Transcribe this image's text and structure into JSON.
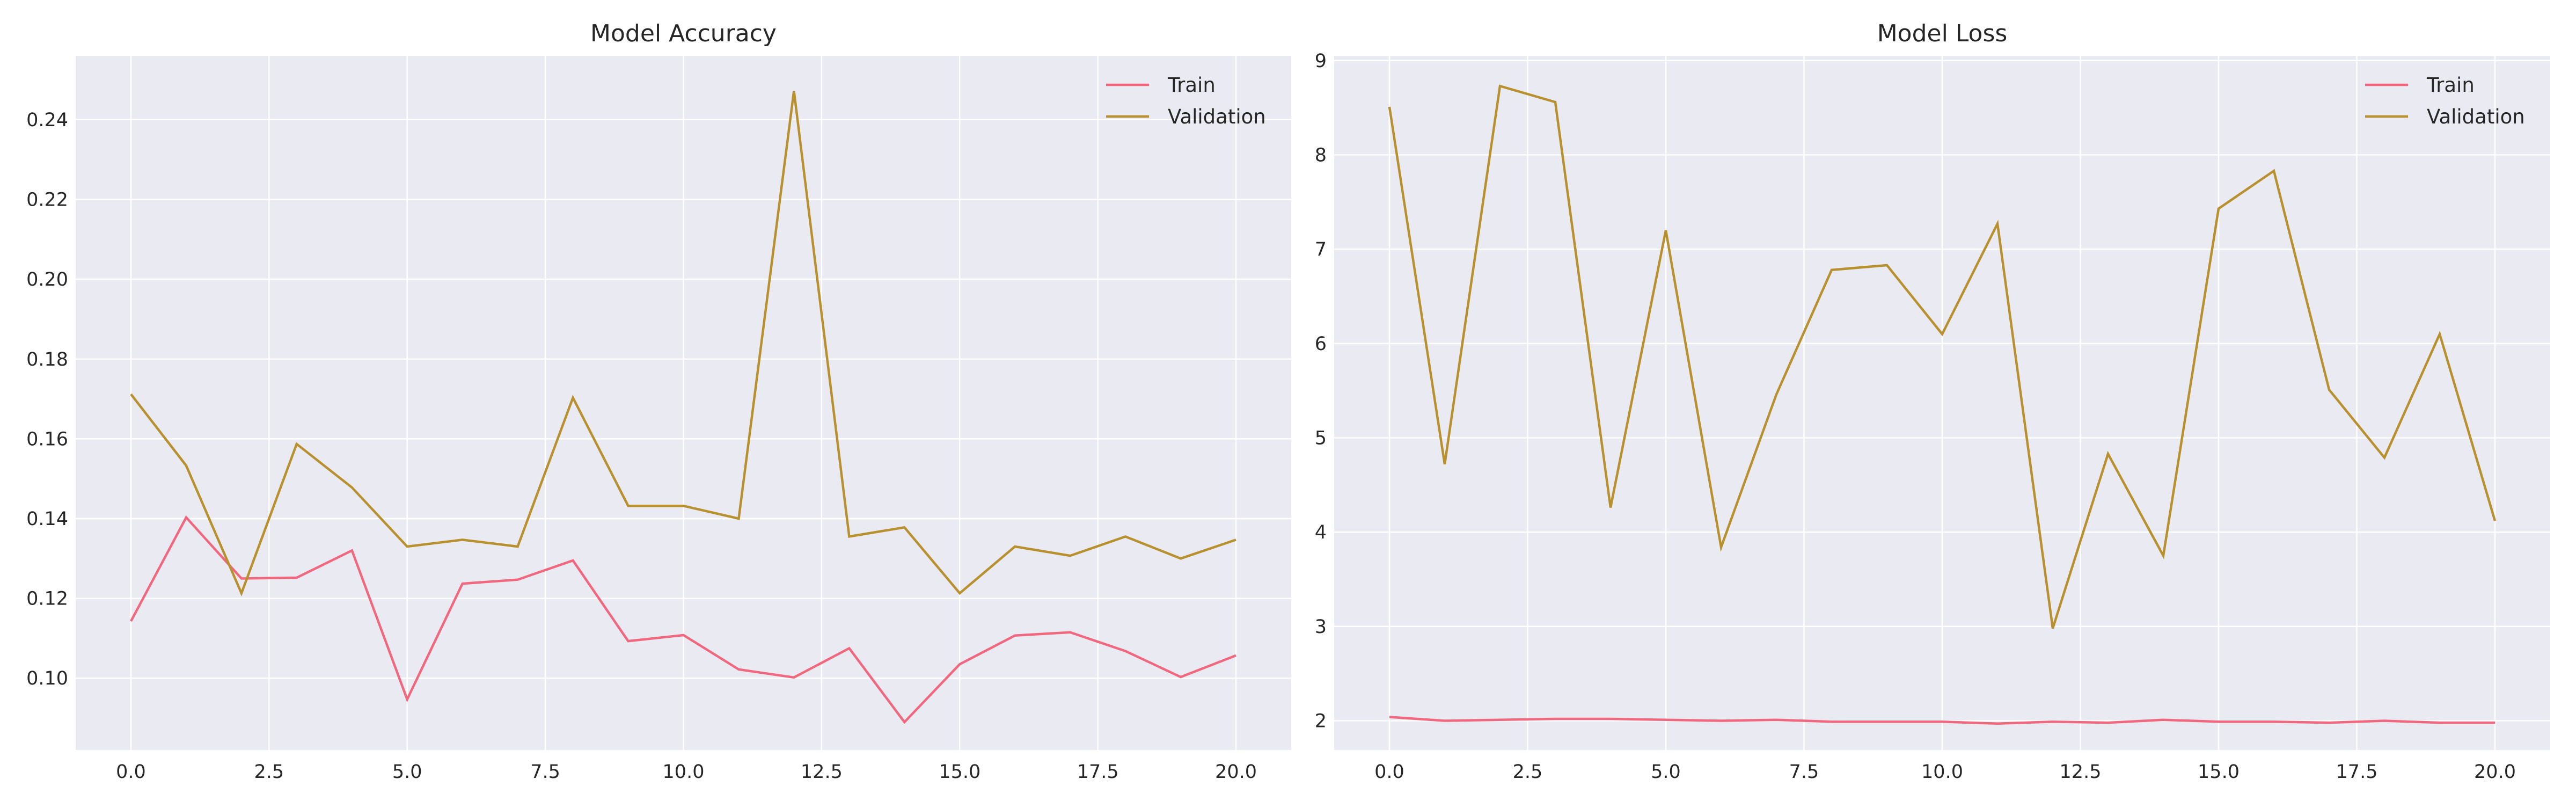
{
  "chart_data": [
    {
      "type": "line",
      "title": "Model Accuracy",
      "xlabel": "",
      "ylabel": "",
      "xlim": [
        -1.0,
        21.0
      ],
      "ylim": [
        0.082,
        0.256
      ],
      "xticks": [
        0.0,
        2.5,
        5.0,
        7.5,
        10.0,
        12.5,
        15.0,
        17.5,
        20.0
      ],
      "xtick_labels": [
        "0.0",
        "2.5",
        "5.0",
        "7.5",
        "10.0",
        "12.5",
        "15.0",
        "17.5",
        "20.0"
      ],
      "yticks": [
        0.1,
        0.12,
        0.14,
        0.16,
        0.18,
        0.2,
        0.22,
        0.24
      ],
      "ytick_labels": [
        "0.10",
        "0.12",
        "0.14",
        "0.16",
        "0.18",
        "0.20",
        "0.22",
        "0.24"
      ],
      "grid": true,
      "legend_position": "top-right",
      "x": [
        0,
        1,
        2,
        3,
        4,
        5,
        6,
        7,
        8,
        9,
        10,
        11,
        12,
        13,
        14,
        15,
        16,
        17,
        18,
        19,
        20
      ],
      "series": [
        {
          "name": "Train",
          "color": "#f0677e",
          "values": [
            0.1143,
            0.1403,
            0.125,
            0.1252,
            0.132,
            0.0947,
            0.1237,
            0.1247,
            0.1295,
            0.1093,
            0.1108,
            0.1022,
            0.1002,
            0.1075,
            0.089,
            0.1035,
            0.1107,
            0.1115,
            0.1068,
            0.1003,
            0.1057
          ]
        },
        {
          "name": "Validation",
          "color": "#b8902e",
          "values": [
            0.1712,
            0.1533,
            0.1213,
            0.1587,
            0.1478,
            0.133,
            0.1347,
            0.133,
            0.1703,
            0.1432,
            0.1432,
            0.14,
            0.2472,
            0.1355,
            0.1378,
            0.1213,
            0.133,
            0.1307,
            0.1355,
            0.13,
            0.1347
          ]
        }
      ]
    },
    {
      "type": "line",
      "title": "Model Loss",
      "xlabel": "",
      "ylabel": "",
      "xlim": [
        -1.0,
        21.0
      ],
      "ylim": [
        1.69,
        9.05
      ],
      "xticks": [
        0.0,
        2.5,
        5.0,
        7.5,
        10.0,
        12.5,
        15.0,
        17.5,
        20.0
      ],
      "xtick_labels": [
        "0.0",
        "2.5",
        "5.0",
        "7.5",
        "10.0",
        "12.5",
        "15.0",
        "17.5",
        "20.0"
      ],
      "yticks": [
        2,
        3,
        4,
        5,
        6,
        7,
        8,
        9
      ],
      "ytick_labels": [
        "2",
        "3",
        "4",
        "5",
        "6",
        "7",
        "8",
        "9"
      ],
      "grid": true,
      "legend_position": "top-right",
      "x": [
        0,
        1,
        2,
        3,
        4,
        5,
        6,
        7,
        8,
        9,
        10,
        11,
        12,
        13,
        14,
        15,
        16,
        17,
        18,
        19,
        20
      ],
      "series": [
        {
          "name": "Train",
          "color": "#f0677e",
          "values": [
            2.04,
            2.0,
            2.01,
            2.02,
            2.02,
            2.01,
            2.0,
            2.01,
            1.99,
            1.99,
            1.99,
            1.97,
            1.99,
            1.98,
            2.01,
            1.99,
            1.99,
            1.98,
            2.0,
            1.98,
            1.98
          ]
        },
        {
          "name": "Validation",
          "color": "#b8902e",
          "values": [
            8.51,
            4.72,
            8.73,
            8.56,
            4.26,
            7.2,
            3.84,
            5.46,
            6.78,
            6.83,
            6.1,
            7.27,
            2.98,
            4.83,
            3.75,
            7.43,
            7.83,
            5.51,
            4.79,
            6.1,
            4.12
          ]
        }
      ]
    }
  ]
}
